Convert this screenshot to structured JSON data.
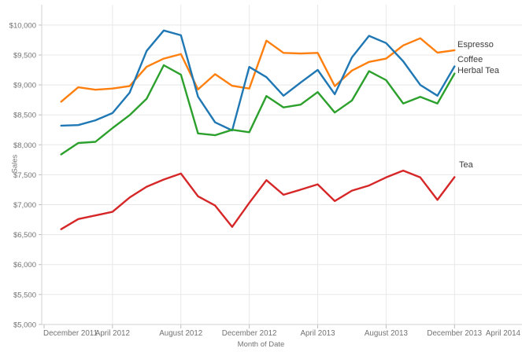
{
  "chart_data": {
    "type": "line",
    "title": "",
    "xlabel": "Month of Date",
    "ylabel": "Sales",
    "grid": true,
    "legend_position": "line-end-labels",
    "ylim": [
      5000,
      10250
    ],
    "y_ticks": [
      {
        "value": 5000,
        "label": "$5,000"
      },
      {
        "value": 5500,
        "label": "$5,500"
      },
      {
        "value": 6000,
        "label": "$6,000"
      },
      {
        "value": 6500,
        "label": "$6,500"
      },
      {
        "value": 7000,
        "label": "$7,000"
      },
      {
        "value": 7500,
        "label": "$7,500"
      },
      {
        "value": 8000,
        "label": "$8,000"
      },
      {
        "value": 8500,
        "label": "$8,500"
      },
      {
        "value": 9000,
        "label": "$9,000"
      },
      {
        "value": 9500,
        "label": "$9,500"
      },
      {
        "value": 10000,
        "label": "$10,000"
      }
    ],
    "x_ticks": [
      {
        "month_index": 0,
        "label": "December 2011"
      },
      {
        "month_index": 4,
        "label": "April 2012"
      },
      {
        "month_index": 8,
        "label": "August 2012"
      },
      {
        "month_index": 12,
        "label": "December 2012"
      },
      {
        "month_index": 16,
        "label": "April 2013"
      },
      {
        "month_index": 20,
        "label": "August 2013"
      },
      {
        "month_index": 24,
        "label": "December 2013"
      },
      {
        "month_index": 28,
        "label": "April 2014"
      }
    ],
    "x": [
      "Jan 2012",
      "Feb 2012",
      "Mar 2012",
      "Apr 2012",
      "May 2012",
      "Jun 2012",
      "Jul 2012",
      "Aug 2012",
      "Sep 2012",
      "Oct 2012",
      "Nov 2012",
      "Dec 2012",
      "Jan 2013",
      "Feb 2013",
      "Mar 2013",
      "Apr 2013",
      "May 2013",
      "Jun 2013",
      "Jul 2013",
      "Aug 2013",
      "Sep 2013",
      "Oct 2013",
      "Nov 2013",
      "Dec 2013"
    ],
    "series": [
      {
        "name": "Espresso",
        "color": "#ff7f0e",
        "values": [
          8720,
          8960,
          8920,
          8940,
          8980,
          9305,
          9440,
          9515,
          8925,
          9180,
          8985,
          8940,
          9740,
          9535,
          9525,
          9535,
          8980,
          9240,
          9385,
          9440,
          9660,
          9780,
          9540,
          9580
        ]
      },
      {
        "name": "Coffee",
        "color": "#1f77b4",
        "values": [
          8320,
          8330,
          8410,
          8530,
          8870,
          9570,
          9910,
          9830,
          8805,
          8375,
          8240,
          9300,
          9130,
          8820,
          9040,
          9250,
          8845,
          9460,
          9820,
          9700,
          9395,
          9000,
          8820,
          9310
        ]
      },
      {
        "name": "Herbal Tea",
        "color": "#2ca02c",
        "values": [
          7840,
          8030,
          8050,
          8280,
          8495,
          8770,
          9330,
          9170,
          8190,
          8160,
          8250,
          8210,
          8815,
          8625,
          8670,
          8880,
          8540,
          8740,
          9230,
          9080,
          8690,
          8800,
          8690,
          9190
        ]
      },
      {
        "name": "Tea",
        "color": "#d62728",
        "values": [
          6590,
          6760,
          6820,
          6880,
          7120,
          7300,
          7420,
          7520,
          7140,
          6985,
          6630,
          7030,
          7410,
          7165,
          7250,
          7340,
          7060,
          7235,
          7320,
          7455,
          7570,
          7455,
          7080,
          7460
        ]
      }
    ],
    "style": {
      "gridline_color": "#e8e8e8",
      "axis_line_color": "#d0d0d0",
      "tick_mark_color": "#bdbdbd",
      "tick_label_color": "#737373",
      "series_label_color": "#3b3b3b",
      "line_width": 2.4
    }
  },
  "axes": {
    "y_title": "Sales",
    "x_title": "Month of Date"
  }
}
